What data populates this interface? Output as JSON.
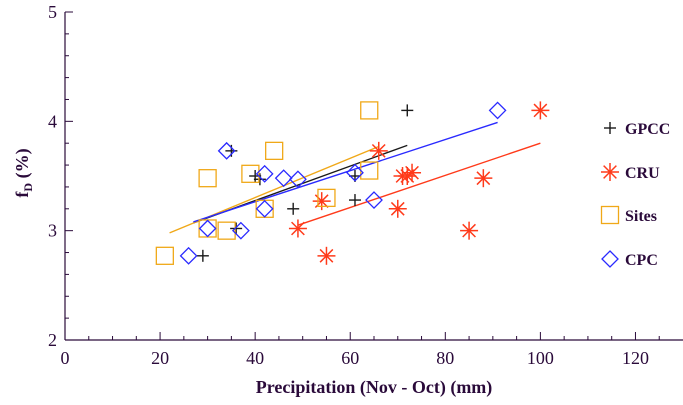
{
  "chart_data": {
    "type": "scatter",
    "xlabel": "Precipitation (Nov - Oct) (mm)",
    "ylabel": {
      "main": "f",
      "sub": "D",
      "rest": " (%)"
    },
    "xlim": [
      0,
      130
    ],
    "ylim": [
      2,
      5
    ],
    "xticks": [
      0,
      20,
      40,
      60,
      80,
      100,
      120
    ],
    "yticks": [
      2,
      3,
      4,
      5
    ],
    "axis_color": "#2a0a3a",
    "legend_position": "right",
    "series": [
      {
        "name": "GPCC",
        "marker": "plus",
        "color": "#1a1a1a",
        "points": [
          [
            29,
            2.77
          ],
          [
            35,
            3.73
          ],
          [
            36,
            3.02
          ],
          [
            40,
            3.5
          ],
          [
            41,
            3.47
          ],
          [
            48,
            3.2
          ],
          [
            61,
            3.28
          ],
          [
            61,
            3.5
          ],
          [
            72,
            4.1
          ]
        ],
        "fit": [
          [
            27,
            3.07
          ],
          [
            72,
            3.78
          ]
        ]
      },
      {
        "name": "CRU",
        "marker": "asterisk",
        "color": "#ff3a1a",
        "points": [
          [
            49,
            3.02
          ],
          [
            54,
            3.27
          ],
          [
            55,
            2.77
          ],
          [
            66,
            3.73
          ],
          [
            70,
            3.2
          ],
          [
            71,
            3.5
          ],
          [
            72,
            3.5
          ],
          [
            73,
            3.53
          ],
          [
            85,
            3.0
          ],
          [
            88,
            3.48
          ],
          [
            100,
            4.1
          ]
        ],
        "fit": [
          [
            49,
            3.05
          ],
          [
            100,
            3.8
          ]
        ]
      },
      {
        "name": "Sites",
        "marker": "square",
        "color": "#f0a818",
        "points": [
          [
            21,
            2.77
          ],
          [
            30,
            3.48
          ],
          [
            30,
            3.02
          ],
          [
            34,
            3.0
          ],
          [
            39,
            3.52
          ],
          [
            42,
            3.2
          ],
          [
            44,
            3.73
          ],
          [
            55,
            3.3
          ],
          [
            64,
            4.1
          ],
          [
            64,
            3.55
          ]
        ],
        "fit": [
          [
            22,
            2.98
          ],
          [
            66,
            3.77
          ]
        ]
      },
      {
        "name": "CPC",
        "marker": "diamond",
        "color": "#2a2aff",
        "points": [
          [
            26,
            2.77
          ],
          [
            30,
            3.02
          ],
          [
            34,
            3.73
          ],
          [
            37,
            3.0
          ],
          [
            42,
            3.2
          ],
          [
            42,
            3.52
          ],
          [
            46,
            3.48
          ],
          [
            49,
            3.47
          ],
          [
            61,
            3.53
          ],
          [
            65,
            3.28
          ],
          [
            91,
            4.1
          ]
        ],
        "fit": [
          [
            27,
            3.08
          ],
          [
            91,
            3.99
          ]
        ]
      }
    ]
  }
}
